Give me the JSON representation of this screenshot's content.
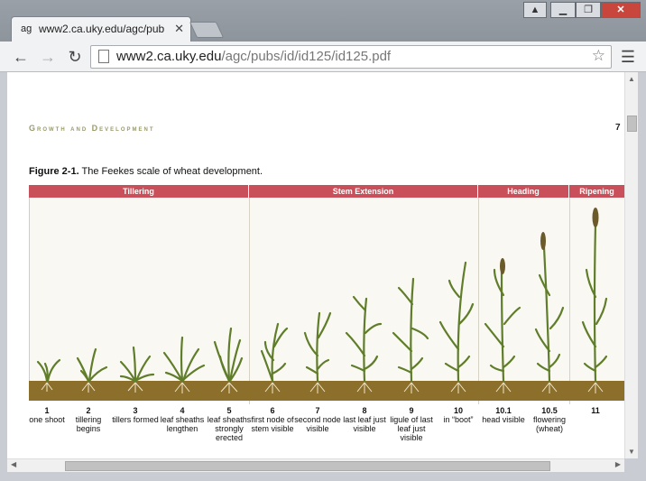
{
  "browser": {
    "tab_title": "www2.ca.uky.edu/agc/pub",
    "tab_favicon": "ag",
    "url_host": "www2.ca.uky.edu",
    "url_path": "/agc/pubs/id/id125/id125.pdf"
  },
  "document": {
    "running_head": "Growth and Development",
    "page_number": "7",
    "caption_bold": "Figure 2-1.",
    "caption_text": " The Feekes scale of wheat development.",
    "phases": [
      {
        "label": "Tillering"
      },
      {
        "label": "Stem Extension"
      },
      {
        "label": "Heading"
      },
      {
        "label": "Ripening"
      }
    ],
    "stages": [
      {
        "num": "1",
        "desc": "one shoot"
      },
      {
        "num": "2",
        "desc": "tillering begins"
      },
      {
        "num": "3",
        "desc": "tillers formed"
      },
      {
        "num": "4",
        "desc": "leaf sheaths lengthen"
      },
      {
        "num": "5",
        "desc": "leaf sheaths strongly erected"
      },
      {
        "num": "6",
        "desc": "first node of stem visible"
      },
      {
        "num": "7",
        "desc": "second node visible"
      },
      {
        "num": "8",
        "desc": "last leaf just visible"
      },
      {
        "num": "9",
        "desc": "ligule of last leaf just visible"
      },
      {
        "num": "10",
        "desc": "in “boot”"
      },
      {
        "num": "10.1",
        "desc": "head visible"
      },
      {
        "num": "10.5",
        "desc": "flowering (wheat)"
      },
      {
        "num": "11",
        "desc": ""
      }
    ],
    "colors": {
      "phase_bar": "#c9505a",
      "soil": "#8b6f2a",
      "leaf": "#7a9a3a"
    }
  }
}
